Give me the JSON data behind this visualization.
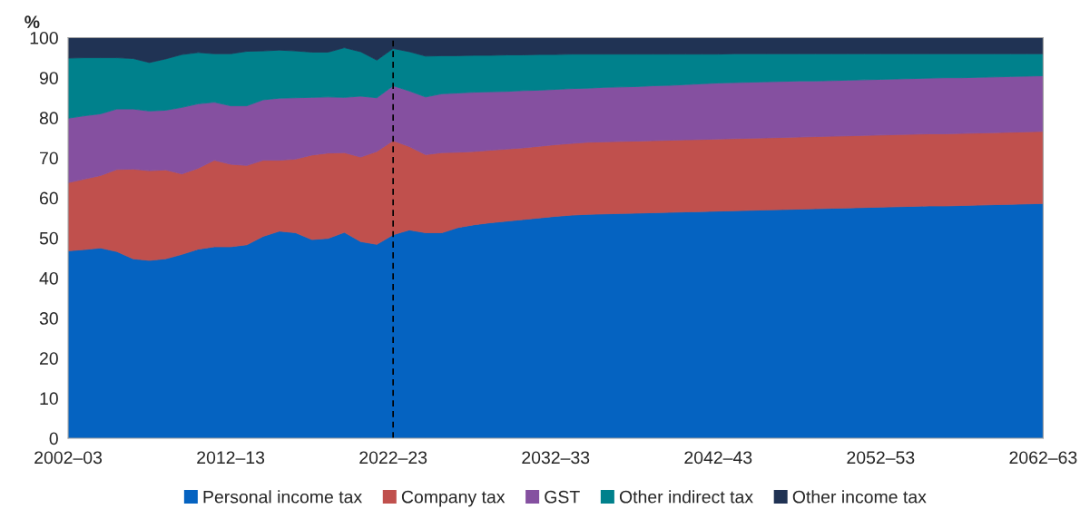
{
  "chart_data": {
    "type": "area",
    "stacked": true,
    "ylabel": "%",
    "categories": [
      "2002–03",
      null,
      null,
      null,
      null,
      null,
      null,
      null,
      null,
      null,
      "2012–13",
      null,
      null,
      null,
      null,
      null,
      null,
      null,
      null,
      null,
      "2022–23",
      null,
      null,
      null,
      null,
      null,
      null,
      null,
      null,
      null,
      "2032–33",
      null,
      null,
      null,
      null,
      null,
      null,
      null,
      null,
      null,
      "2042–43",
      null,
      null,
      null,
      null,
      null,
      null,
      null,
      null,
      null,
      "2052–53",
      null,
      null,
      null,
      null,
      null,
      null,
      null,
      null,
      null,
      "2062–63"
    ],
    "series": [
      {
        "name": "Personal income tax",
        "color": "#0563c1",
        "values": [
          46.8,
          47.1,
          47.5,
          46.6,
          44.8,
          44.4,
          44.8,
          45.9,
          47.2,
          47.8,
          47.8,
          48.3,
          50.4,
          51.7,
          51.3,
          49.6,
          49.9,
          51.4,
          49.1,
          48.4,
          50.8,
          52.0,
          51.3,
          51.3,
          52.6,
          53.3,
          53.8,
          54.2,
          54.6,
          55.0,
          55.4,
          55.7,
          55.9,
          56.0,
          56.1,
          56.2,
          56.3,
          56.4,
          56.5,
          56.6,
          56.7,
          56.8,
          56.9,
          57.0,
          57.1,
          57.2,
          57.3,
          57.4,
          57.5,
          57.6,
          57.7,
          57.8,
          57.9,
          58.0,
          58.0,
          58.1,
          58.2,
          58.3,
          58.4,
          58.5,
          58.6
        ]
      },
      {
        "name": "Company tax",
        "color": "#c0504d",
        "values": [
          17.0,
          17.6,
          18.1,
          20.5,
          22.4,
          22.4,
          22.2,
          20.1,
          20.2,
          21.6,
          20.6,
          19.8,
          19.0,
          17.7,
          18.4,
          21.1,
          21.3,
          19.9,
          21.1,
          23.2,
          23.5,
          20.8,
          19.5,
          20.0,
          18.8,
          18.3,
          18.1,
          18.0,
          17.9,
          17.9,
          17.9,
          17.9,
          18.0,
          18.0,
          18.0,
          18.0,
          18.0,
          18.0,
          18.0,
          18.0,
          18.0,
          18.0,
          18.0,
          18.0,
          18.0,
          18.0,
          18.0,
          18.0,
          18.0,
          18.0,
          18.0,
          18.0,
          18.0,
          18.0,
          18.0,
          18.0,
          18.0,
          18.0,
          18.0,
          18.0,
          18.0
        ]
      },
      {
        "name": "GST",
        "color": "#8550a0",
        "values": [
          16.1,
          15.8,
          15.4,
          15.1,
          15.0,
          14.9,
          14.9,
          16.6,
          16.1,
          14.5,
          14.6,
          14.9,
          15.1,
          15.5,
          15.3,
          14.4,
          14.0,
          13.8,
          15.2,
          13.4,
          13.7,
          13.9,
          14.4,
          14.7,
          14.8,
          14.8,
          14.6,
          14.4,
          14.3,
          14.0,
          13.8,
          13.7,
          13.5,
          13.6,
          13.6,
          13.6,
          13.7,
          13.7,
          13.8,
          13.9,
          14.0,
          14.0,
          14.0,
          14.0,
          14.0,
          14.0,
          13.9,
          13.9,
          13.9,
          13.9,
          13.9,
          13.9,
          13.9,
          13.9,
          14.0,
          13.9,
          13.9,
          13.9,
          13.9,
          13.9,
          13.9
        ]
      },
      {
        "name": "Other indirect tax",
        "color": "#00818c",
        "values": [
          15.0,
          14.5,
          14.0,
          12.8,
          12.6,
          12.1,
          12.8,
          13.2,
          12.8,
          12.1,
          13.0,
          13.6,
          12.2,
          12.0,
          11.7,
          11.3,
          11.2,
          12.4,
          11.1,
          9.4,
          9.3,
          9.8,
          10.2,
          9.5,
          9.3,
          9.2,
          9.1,
          9.1,
          8.9,
          8.9,
          8.7,
          8.6,
          8.5,
          8.3,
          8.2,
          8.1,
          7.9,
          7.8,
          7.6,
          7.4,
          7.2,
          7.2,
          7.1,
          7.0,
          6.9,
          6.8,
          6.8,
          6.7,
          6.6,
          6.5,
          6.4,
          6.3,
          6.2,
          6.1,
          6.0,
          6.0,
          5.9,
          5.8,
          5.7,
          5.6,
          5.5
        ]
      },
      {
        "name": "Other income tax",
        "color": "#203354",
        "values": [
          5.1,
          5.0,
          5.0,
          5.0,
          5.2,
          6.2,
          5.3,
          4.2,
          3.7,
          4.0,
          4.0,
          3.4,
          3.3,
          3.1,
          3.3,
          3.6,
          3.6,
          2.5,
          3.5,
          5.6,
          2.7,
          3.5,
          4.6,
          4.5,
          4.5,
          4.4,
          4.4,
          4.3,
          4.3,
          4.2,
          4.2,
          4.1,
          4.1,
          4.1,
          4.1,
          4.1,
          4.1,
          4.1,
          4.1,
          4.1,
          4.1,
          4.0,
          4.0,
          4.0,
          4.0,
          4.0,
          4.0,
          4.0,
          4.0,
          4.0,
          4.0,
          4.0,
          4.0,
          4.0,
          4.0,
          4.0,
          4.0,
          4.0,
          4.0,
          4.0,
          4.0
        ]
      }
    ],
    "ylim": [
      0,
      100
    ],
    "yticks": [
      0,
      10,
      20,
      30,
      40,
      50,
      60,
      70,
      80,
      90,
      100
    ],
    "ref_lines": [
      {
        "axis": "x",
        "value": "2022–23",
        "color": "#000000",
        "line_style": "dashed"
      }
    ],
    "legend": "bottom"
  }
}
